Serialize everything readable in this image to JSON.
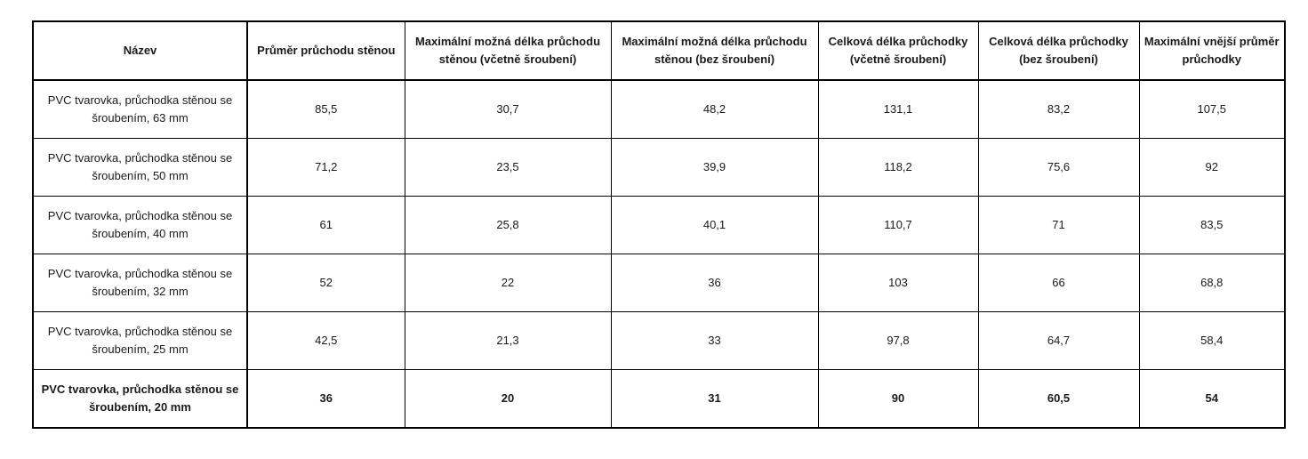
{
  "table": {
    "headers": [
      "Název",
      "Průměr průchodu stěnou",
      "Maximální možná délka průchodu stěnou (včetně šroubení)",
      "Maximální možná délka průchodu stěnou (bez šroubení)",
      "Celková délka průchodky (včetně šroubení)",
      "Celková délka průchodky (bez šroubení)",
      "Maximální vnější průměr průchodky"
    ],
    "rows": [
      [
        "PVC tvarovka, průchodka stěnou se šroubením, 63 mm",
        "85,5",
        "30,7",
        "48,2",
        "131,1",
        "83,2",
        "107,5"
      ],
      [
        "PVC tvarovka, průchodka stěnou se šroubením, 50 mm",
        "71,2",
        "23,5",
        "39,9",
        "118,2",
        "75,6",
        "92"
      ],
      [
        "PVC tvarovka, průchodka stěnou se šroubením, 40 mm",
        "61",
        "25,8",
        "40,1",
        "110,7",
        "71",
        "83,5"
      ],
      [
        "PVC tvarovka, průchodka stěnou se šroubením, 32 mm",
        "52",
        "22",
        "36",
        "103",
        "66",
        "68,8"
      ],
      [
        "PVC tvarovka, průchodka stěnou se šroubením, 25 mm",
        "42,5",
        "21,3",
        "33",
        "97,8",
        "64,7",
        "58,4"
      ],
      [
        "PVC tvarovka, průchodka stěnou se šroubením, 20 mm",
        "36",
        "20",
        "31",
        "90",
        "60,5",
        "54"
      ]
    ],
    "bold_row_index": 5
  }
}
